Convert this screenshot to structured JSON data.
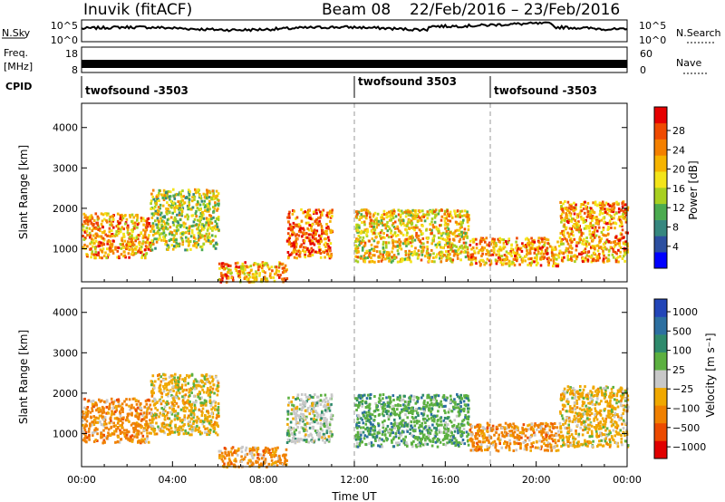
{
  "header": {
    "station": "Inuvik (fitACF)",
    "beam": "Beam 08",
    "date_range": "22/Feb/2016 – 23/Feb/2016"
  },
  "panels": {
    "nsky": {
      "label": "N.Sky",
      "left_ticks": [
        "10^5",
        "10^0"
      ],
      "right_label": "N.Search",
      "right_ticks": [
        "10^5",
        "10^0"
      ]
    },
    "freq": {
      "label_line1": "Freq.",
      "label_line2": "[MHz]",
      "left_ticks": [
        "18",
        "8"
      ],
      "right_label": "Nave",
      "right_ticks": [
        "60",
        "0"
      ]
    },
    "cpid": {
      "label": "CPID",
      "segments": [
        {
          "name": "twofsound -3503",
          "start_hour": 0
        },
        {
          "name": "twofsound 3503",
          "start_hour": 12
        },
        {
          "name": "twofsound -3503",
          "start_hour": 17.9
        }
      ]
    }
  },
  "colors": {
    "power_scale": [
      "#0000ff",
      "#2c4fa0",
      "#36877f",
      "#4bab50",
      "#a8d020",
      "#f3e41a",
      "#f6b400",
      "#f48000",
      "#ef4a00",
      "#e60000"
    ],
    "velocity_scale": [
      "#2245b8",
      "#2c6fa0",
      "#2e8a6c",
      "#5cb040",
      "#c8c8c8",
      "#f0a800",
      "#f08000",
      "#ec4a00",
      "#e00000"
    ]
  },
  "chart_data": [
    {
      "type": "heatmap",
      "name": "Power",
      "xlabel": "",
      "ylabel": "Slant Range [km]",
      "colorbar_label": "Power [dB]",
      "colorbar_ticks": [
        "28",
        "24",
        "20",
        "16",
        "12",
        "8",
        "4"
      ],
      "x_range_hours": [
        0,
        24
      ],
      "ylim": [
        180,
        4600
      ],
      "yticks": [
        1000,
        2000,
        3000,
        4000
      ],
      "echo_regions": [
        {
          "x": [
            0,
            3
          ],
          "y": [
            800,
            1900
          ],
          "value_db": 24
        },
        {
          "x": [
            3,
            6
          ],
          "y": [
            1000,
            2500
          ],
          "value_db": 16
        },
        {
          "x": [
            6,
            9
          ],
          "y": [
            200,
            700
          ],
          "value_db": 24
        },
        {
          "x": [
            9,
            11
          ],
          "y": [
            800,
            2000
          ],
          "value_db": 26
        },
        {
          "x": [
            12,
            17
          ],
          "y": [
            700,
            2000
          ],
          "value_db": 20
        },
        {
          "x": [
            17,
            21
          ],
          "y": [
            600,
            1300
          ],
          "value_db": 24
        },
        {
          "x": [
            21,
            24
          ],
          "y": [
            700,
            2200
          ],
          "value_db": 24
        }
      ]
    },
    {
      "type": "heatmap",
      "name": "Velocity",
      "xlabel": "Time UT",
      "ylabel": "Slant Range [km]",
      "colorbar_label": "Velocity [m s⁻¹]",
      "colorbar_ticks": [
        "1000",
        "500",
        "100",
        "25",
        "−25",
        "−100",
        "−500",
        "−1000"
      ],
      "xticks": [
        "00:00",
        "04:00",
        "08:00",
        "12:00",
        "16:00",
        "20:00",
        "00:00"
      ],
      "x_range_hours": [
        0,
        24
      ],
      "ylim": [
        180,
        4600
      ],
      "yticks": [
        1000,
        2000,
        3000,
        4000
      ],
      "echo_regions": [
        {
          "x": [
            0,
            3
          ],
          "y": [
            800,
            1900
          ],
          "value_ms": -150
        },
        {
          "x": [
            3,
            6
          ],
          "y": [
            1000,
            2500
          ],
          "value_ms": -50
        },
        {
          "x": [
            6,
            9
          ],
          "y": [
            200,
            700
          ],
          "value_ms": -200
        },
        {
          "x": [
            9,
            11
          ],
          "y": [
            800,
            2000
          ],
          "value_ms": 0
        },
        {
          "x": [
            12,
            17
          ],
          "y": [
            700,
            2000
          ],
          "value_ms": 50
        },
        {
          "x": [
            17,
            21
          ],
          "y": [
            600,
            1300
          ],
          "value_ms": -150
        },
        {
          "x": [
            21,
            24
          ],
          "y": [
            700,
            2200
          ],
          "value_ms": -50
        }
      ]
    }
  ]
}
